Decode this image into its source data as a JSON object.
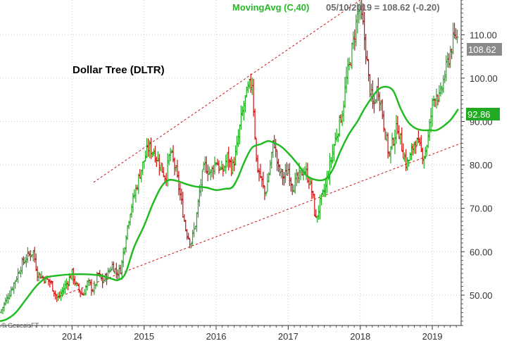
{
  "chart_data": {
    "type": "bar",
    "subtype": "ohlc-weekly",
    "title": "Dollar Tree (DLTR)",
    "indicator_label": "MovingAvg (C,40)",
    "quote_text": "05/10/2019 = 108.62 (-0.20)",
    "credit": "© GenesisFT",
    "last_price": "108.62",
    "ma_last": "92.86",
    "ylim": [
      43,
      118
    ],
    "yticks": [
      {
        "label": "50.00",
        "value": 50
      },
      {
        "label": "60.00",
        "value": 60
      },
      {
        "label": "70.00",
        "value": 70
      },
      {
        "label": "80.00",
        "value": 80
      },
      {
        "label": "90.00",
        "value": 90
      },
      {
        "label": "100.00",
        "value": 100
      },
      {
        "label": "110.00",
        "value": 110
      }
    ],
    "xlim": [
      2013.0,
      2019.4
    ],
    "xticks": [
      {
        "label": "2014",
        "value": 2014.0
      },
      {
        "label": "2015",
        "value": 2015.0
      },
      {
        "label": "2016",
        "value": 2016.0
      },
      {
        "label": "2017",
        "value": 2017.0
      },
      {
        "label": "2018",
        "value": 2018.0
      },
      {
        "label": "2019",
        "value": 2019.0
      }
    ],
    "grid": true,
    "colors": {
      "up": "#22aa22",
      "down": "#cc1111",
      "ma": "#22bb22",
      "channel": "#cc1111",
      "badge_price": "#888888",
      "badge_ma": "#22aa22"
    },
    "price_path": [
      [
        2013.0,
        46
      ],
      [
        2013.12,
        50
      ],
      [
        2013.2,
        53
      ],
      [
        2013.3,
        57
      ],
      [
        2013.38,
        59
      ],
      [
        2013.46,
        60
      ],
      [
        2013.52,
        55
      ],
      [
        2013.6,
        54
      ],
      [
        2013.7,
        53
      ],
      [
        2013.8,
        49
      ],
      [
        2013.9,
        52
      ],
      [
        2014.0,
        55
      ],
      [
        2014.06,
        52
      ],
      [
        2014.15,
        50
      ],
      [
        2014.22,
        53
      ],
      [
        2014.3,
        51
      ],
      [
        2014.36,
        55
      ],
      [
        2014.42,
        53
      ],
      [
        2014.5,
        55
      ],
      [
        2014.56,
        57
      ],
      [
        2014.62,
        55
      ],
      [
        2014.68,
        56
      ],
      [
        2014.74,
        63
      ],
      [
        2014.8,
        69
      ],
      [
        2014.88,
        74
      ],
      [
        2014.94,
        78
      ],
      [
        2015.0,
        81
      ],
      [
        2015.06,
        84
      ],
      [
        2015.14,
        83
      ],
      [
        2015.22,
        80
      ],
      [
        2015.3,
        77
      ],
      [
        2015.36,
        83
      ],
      [
        2015.42,
        80
      ],
      [
        2015.48,
        75
      ],
      [
        2015.53,
        70
      ],
      [
        2015.58,
        65
      ],
      [
        2015.65,
        62
      ],
      [
        2015.72,
        67
      ],
      [
        2015.78,
        75
      ],
      [
        2015.84,
        80
      ],
      [
        2015.92,
        78
      ],
      [
        2016.0,
        81
      ],
      [
        2016.08,
        78
      ],
      [
        2016.16,
        82
      ],
      [
        2016.22,
        79
      ],
      [
        2016.28,
        83
      ],
      [
        2016.34,
        90
      ],
      [
        2016.4,
        95
      ],
      [
        2016.46,
        98
      ],
      [
        2016.5,
        99
      ],
      [
        2016.53,
        90
      ],
      [
        2016.56,
        80
      ],
      [
        2016.62,
        77
      ],
      [
        2016.68,
        73
      ],
      [
        2016.74,
        79
      ],
      [
        2016.8,
        86
      ],
      [
        2016.86,
        79
      ],
      [
        2016.94,
        77
      ],
      [
        2017.0,
        79
      ],
      [
        2017.06,
        75
      ],
      [
        2017.14,
        77
      ],
      [
        2017.22,
        79
      ],
      [
        2017.28,
        77
      ],
      [
        2017.34,
        73
      ],
      [
        2017.38,
        67
      ],
      [
        2017.44,
        71
      ],
      [
        2017.52,
        75
      ],
      [
        2017.58,
        80
      ],
      [
        2017.64,
        85
      ],
      [
        2017.7,
        89
      ],
      [
        2017.76,
        93
      ],
      [
        2017.8,
        99
      ],
      [
        2017.86,
        104
      ],
      [
        2017.92,
        110
      ],
      [
        2017.97,
        116
      ],
      [
        2018.03,
        113
      ],
      [
        2018.08,
        106
      ],
      [
        2018.12,
        99
      ],
      [
        2018.18,
        93
      ],
      [
        2018.24,
        98
      ],
      [
        2018.28,
        95
      ],
      [
        2018.34,
        88
      ],
      [
        2018.4,
        82
      ],
      [
        2018.46,
        86
      ],
      [
        2018.52,
        89
      ],
      [
        2018.58,
        84
      ],
      [
        2018.64,
        80
      ],
      [
        2018.7,
        82
      ],
      [
        2018.76,
        86
      ],
      [
        2018.82,
        84
      ],
      [
        2018.88,
        82
      ],
      [
        2018.94,
        86
      ],
      [
        2019.0,
        94
      ],
      [
        2019.05,
        97
      ],
      [
        2019.1,
        95
      ],
      [
        2019.16,
        100
      ],
      [
        2019.22,
        104
      ],
      [
        2019.28,
        108
      ],
      [
        2019.33,
        110
      ],
      [
        2019.36,
        108.6
      ]
    ],
    "moving_average": [
      [
        2013.0,
        44
      ],
      [
        2013.1,
        44.5
      ],
      [
        2013.22,
        46
      ],
      [
        2013.36,
        49
      ],
      [
        2013.5,
        52
      ],
      [
        2013.64,
        54
      ],
      [
        2013.8,
        54.5
      ],
      [
        2014.0,
        54.8
      ],
      [
        2014.2,
        54.8
      ],
      [
        2014.4,
        54.5
      ],
      [
        2014.56,
        53.7
      ],
      [
        2014.64,
        53.5
      ],
      [
        2014.74,
        55
      ],
      [
        2014.86,
        61
      ],
      [
        2015.0,
        66
      ],
      [
        2015.12,
        71
      ],
      [
        2015.24,
        75
      ],
      [
        2015.34,
        76.5
      ],
      [
        2015.46,
        76.3
      ],
      [
        2015.6,
        75.5
      ],
      [
        2015.72,
        75
      ],
      [
        2015.86,
        74.8
      ],
      [
        2016.0,
        74.2
      ],
      [
        2016.12,
        74.5
      ],
      [
        2016.22,
        74.8
      ],
      [
        2016.3,
        77
      ],
      [
        2016.4,
        81
      ],
      [
        2016.5,
        84
      ],
      [
        2016.62,
        84.8
      ],
      [
        2016.72,
        85.5
      ],
      [
        2016.82,
        85
      ],
      [
        2016.92,
        84
      ],
      [
        2017.04,
        82
      ],
      [
        2017.14,
        80
      ],
      [
        2017.26,
        77.5
      ],
      [
        2017.4,
        76.5
      ],
      [
        2017.52,
        76.8
      ],
      [
        2017.62,
        79
      ],
      [
        2017.72,
        83
      ],
      [
        2017.84,
        87
      ],
      [
        2017.96,
        90
      ],
      [
        2018.06,
        93
      ],
      [
        2018.16,
        95.5
      ],
      [
        2018.26,
        97.5
      ],
      [
        2018.36,
        98
      ],
      [
        2018.46,
        97
      ],
      [
        2018.56,
        93
      ],
      [
        2018.66,
        90
      ],
      [
        2018.76,
        88.5
      ],
      [
        2018.86,
        88
      ],
      [
        2018.96,
        88
      ],
      [
        2019.06,
        88
      ],
      [
        2019.16,
        89
      ],
      [
        2019.26,
        90.5
      ],
      [
        2019.36,
        92.86
      ]
    ],
    "channel_upper": [
      [
        2014.3,
        76
      ],
      [
        2018.0,
        118
      ]
    ],
    "channel_lower": [
      [
        2013.8,
        49.5
      ],
      [
        2019.4,
        85
      ]
    ]
  }
}
